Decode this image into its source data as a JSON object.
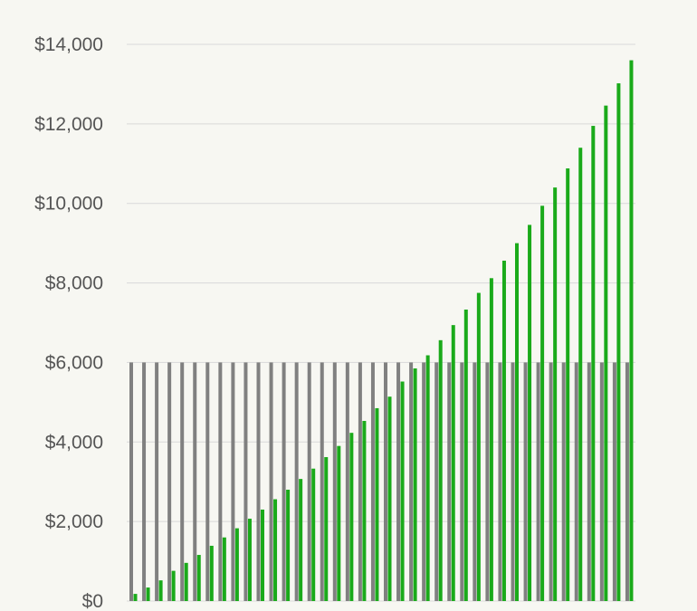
{
  "chart_data": {
    "type": "bar",
    "title": "",
    "xlabel": "",
    "ylabel": "",
    "ylim": [
      0,
      14000
    ],
    "yticks": [
      0,
      2000,
      4000,
      6000,
      8000,
      10000,
      12000,
      14000
    ],
    "ytick_labels": [
      "$0",
      "$2,000",
      "$4,000",
      "$6,000",
      "$8,000",
      "$10,000",
      "$12,000",
      "$14,000"
    ],
    "grid": "horizontal",
    "legend": "none",
    "colors": {
      "series_a": "#808080",
      "series_b": "#1aaa1a",
      "grid": "#d9d9d9",
      "background": "#f7f7f2"
    },
    "categories_count": 40,
    "series": [
      {
        "color_key": "series_a",
        "values": [
          6000,
          6000,
          6000,
          6000,
          6000,
          6000,
          6000,
          6000,
          6000,
          6000,
          6000,
          6000,
          6000,
          6000,
          6000,
          6000,
          6000,
          6000,
          6000,
          6000,
          6000,
          6000,
          6000,
          6000,
          6000,
          6000,
          6000,
          6000,
          6000,
          6000,
          6000,
          6000,
          6000,
          6000,
          6000,
          6000,
          6000,
          6000,
          6000,
          6000
        ]
      },
      {
        "color_key": "series_b",
        "values": [
          180,
          340,
          520,
          760,
          960,
          1160,
          1390,
          1600,
          1830,
          2070,
          2300,
          2560,
          2800,
          3070,
          3330,
          3620,
          3900,
          4230,
          4530,
          4850,
          5140,
          5520,
          5850,
          6180,
          6560,
          6940,
          7330,
          7750,
          8120,
          8560,
          9000,
          9460,
          9940,
          10400,
          10880,
          11400,
          11950,
          12460,
          13020,
          13600
        ]
      }
    ]
  }
}
